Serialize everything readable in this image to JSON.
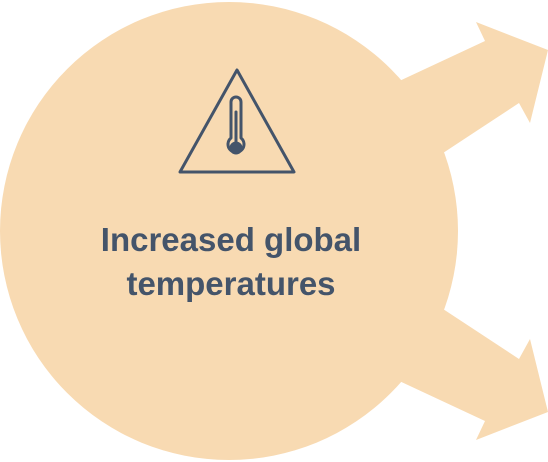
{
  "diagram": {
    "title": "Increased global\ntemperatures",
    "icon": "thermometer-warning-icon",
    "colors": {
      "fill": "#f8dab2",
      "text": "#44546a",
      "icon_stroke": "#44546a"
    },
    "arrows": [
      {
        "direction": "upper-right"
      },
      {
        "direction": "lower-right"
      }
    ]
  }
}
